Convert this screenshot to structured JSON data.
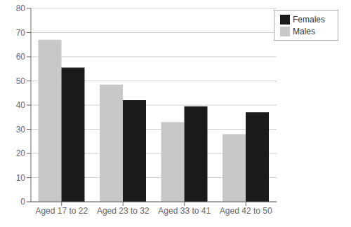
{
  "chart_data": {
    "type": "bar",
    "categories": [
      "Aged 17 to 22",
      "Aged 23 to 32",
      "Aged 33 to 41",
      "Aged 42 to 50"
    ],
    "series": [
      {
        "name": "Males",
        "color": "#c8c8c8",
        "values": [
          67,
          48.5,
          33,
          28
        ]
      },
      {
        "name": "Females",
        "color": "#1a1a1a",
        "values": [
          55.5,
          42,
          39.5,
          37
        ]
      }
    ],
    "ylim": [
      0,
      80
    ],
    "yticks": [
      0,
      10,
      20,
      30,
      40,
      50,
      60,
      70,
      80
    ],
    "grid": true,
    "legend": "upper right"
  }
}
